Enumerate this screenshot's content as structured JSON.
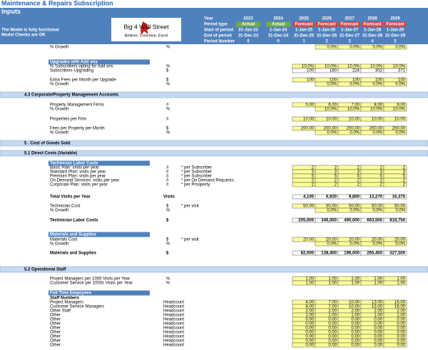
{
  "header": {
    "title": "Maintenance & Repairs Subscription",
    "subtitle": "Inputs",
    "notes": [
      "The Model is fully functional",
      "Model Checks are OK"
    ],
    "logo": {
      "name": "Big 4 Wall Street",
      "tagline": "Believe, Conceive, Excel"
    },
    "timeline": {
      "labels": [
        "Year",
        "Period type",
        "Start of period",
        "End of period",
        "Period Number"
      ],
      "years": [
        "2023",
        "2024",
        "2025",
        "2026",
        "2027",
        "2028",
        "2029"
      ],
      "period_types": [
        "Actual",
        "Actual",
        "Forecast",
        "Forecast",
        "Forecast",
        "Forecast",
        "Forecast"
      ],
      "starts": [
        "31-Jan-23",
        "1-Jan-24",
        "1-Jan-25",
        "1-Jan-26",
        "1-Jan-27",
        "1-Jan-28",
        "1-Jan-29"
      ],
      "ends": [
        "31-Dec-23",
        "31-Dec-24",
        "31-Dec-25",
        "31-Dec-26",
        "31-Dec-27",
        "31-Dec-28",
        "31-Dec-29"
      ],
      "period_numbers": [
        "0",
        "0",
        "1",
        "2",
        "3",
        "4",
        "5"
      ]
    }
  },
  "rows": [
    {
      "label": "% Growth",
      "unit": "%",
      "kind": "input",
      "values": [
        null,
        null,
        null,
        "0.0%",
        "0.0%",
        "0.0%",
        "0.0%"
      ]
    },
    {
      "label": "Upgrades with Add ons",
      "kind": "group"
    },
    {
      "label": "% Subscribers opting for Add ons",
      "unit": "%",
      "kind": "input",
      "values": [
        null,
        null,
        "10.0%",
        "10.0%",
        "10.0%",
        "10.0%",
        "10.0%"
      ]
    },
    {
      "label": "Subscribers Upgrading",
      "unit": "$",
      "kind": "calc",
      "values": [
        null,
        null,
        "100",
        "160",
        "224",
        "302",
        "371"
      ]
    },
    {
      "label": "Extra Fees per Month per Upgrade",
      "unit": "$",
      "kind": "input",
      "values": [
        null,
        null,
        "100",
        "100",
        "100",
        "100",
        "100"
      ]
    },
    {
      "label": "% Growth",
      "unit": "%",
      "kind": "input",
      "values": [
        null,
        null,
        null,
        "0.0%",
        "0.0%",
        "0.0%",
        "0.0%"
      ]
    },
    {
      "label": "4.3  Corporate/Property Management Accounts",
      "kind": "section"
    },
    {
      "label": "Property Management Firms",
      "unit": "#",
      "kind": "input",
      "values": [
        null,
        null,
        "5.00",
        "6.00",
        "7.00",
        "8.00",
        "9.00"
      ]
    },
    {
      "label": "% Growth",
      "unit": "%",
      "kind": "input",
      "values": [
        null,
        null,
        null,
        "10.0%",
        "10.0%",
        "10.0%",
        "10.0%"
      ]
    },
    {
      "label": "Properties per Firm",
      "unit": "#",
      "kind": "input",
      "values": [
        null,
        null,
        "10.00",
        "10.00",
        "10.00",
        "10.00",
        "10.00"
      ]
    },
    {
      "label": "Fees per Property per Month",
      "unit": "$",
      "kind": "input",
      "values": [
        null,
        null,
        "200.00",
        "200.00",
        "200.00",
        "200.00",
        "200.00"
      ]
    },
    {
      "label": "% Growth",
      "unit": "%",
      "kind": "input",
      "values": [
        null,
        null,
        null,
        "0.0%",
        "0.0%",
        "0.0%",
        "0.0%"
      ]
    },
    {
      "label": "5 .  Cost of Goods Sold",
      "kind": "section"
    },
    {
      "label": "5.1  Direct Costs (Variable)",
      "kind": "section"
    },
    {
      "label": "Technician Labor Costs",
      "kind": "group"
    },
    {
      "label": "Basic Plan: visits per year",
      "unit": "#",
      "note": "* per Subscriber",
      "kind": "input",
      "values": [
        null,
        null,
        "2",
        "2",
        "2",
        "2",
        "2"
      ]
    },
    {
      "label": "Standard Plan: visits per year",
      "unit": "#",
      "note": "* per Subscriber",
      "kind": "input",
      "values": [
        null,
        null,
        "3",
        "3",
        "3",
        "3",
        "3"
      ]
    },
    {
      "label": "Premium Plan: visits per year",
      "unit": "#",
      "note": "* per Subscriber",
      "kind": "input",
      "values": [
        null,
        null,
        "5",
        "5",
        "5",
        "5",
        "5"
      ]
    },
    {
      "label": "On Demand Services: visits per year",
      "unit": "#",
      "note": "* per On Demand Requests",
      "kind": "input",
      "values": [
        null,
        null,
        "2",
        "2",
        "2",
        "2",
        "2"
      ]
    },
    {
      "label": "Corporate Plan: visits per year",
      "unit": "#",
      "note": "* per Prooperty",
      "kind": "input",
      "values": [
        null,
        null,
        "2",
        "2",
        "2",
        "2",
        "2"
      ]
    },
    {
      "label": "Total Visits per Year",
      "unit": "Visits",
      "kind": "total",
      "values": [
        null,
        null,
        "4,100",
        "6,920",
        "9,800",
        "13,270",
        "16,375"
      ]
    },
    {
      "label": "Technician Cost",
      "unit": "$",
      "note": "* per visit",
      "kind": "input",
      "values": [
        null,
        null,
        "50.00",
        "50.00",
        "50.00",
        "50.00",
        "50.00"
      ]
    },
    {
      "label": "% Growth",
      "unit": "%",
      "kind": "input",
      "values": [
        null,
        null,
        null,
        "0.0%",
        "0.0%",
        "0.0%",
        "0.0%"
      ]
    },
    {
      "label": "Technician Labor Costs",
      "unit": "$",
      "kind": "total",
      "values": [
        null,
        null,
        "205,000",
        "346,000",
        "490,000",
        "663,500",
        "818,750"
      ]
    },
    {
      "label": "Materials and Supplies",
      "kind": "group"
    },
    {
      "label": "Materials Cost",
      "unit": "$",
      "note": "* per visit",
      "kind": "input",
      "values": [
        null,
        null,
        "20.00",
        "20.00",
        "20.00",
        "20.00",
        "20.00"
      ]
    },
    {
      "label": "% Growth",
      "unit": "%",
      "kind": "input",
      "values": [
        null,
        null,
        null,
        "0.0%",
        "0.0%",
        "0.0%",
        "0.0%"
      ]
    },
    {
      "label": "Materials and Supplies",
      "unit": "$",
      "kind": "total",
      "values": [
        null,
        null,
        "82,000",
        "138,400",
        "196,000",
        "265,400",
        "327,500"
      ]
    },
    {
      "label": "5.2  Operational Staff",
      "kind": "section"
    },
    {
      "label": "Project Managers per 1000 Visits per Year",
      "unit": "%",
      "kind": "input",
      "values": [
        null,
        null,
        "1.00",
        "1.00",
        "1.00",
        "1.00",
        "1.00"
      ]
    },
    {
      "label": "Customer Service per 1000s Visits per Year",
      "unit": "%",
      "kind": "input",
      "values": [
        null,
        null,
        "1.00",
        "1.00",
        "1.00",
        "1.00",
        "1.00"
      ]
    },
    {
      "label": "Full Time Empoyees",
      "kind": "group"
    },
    {
      "label": "Staff Numbers",
      "kind": "heading"
    },
    {
      "label": "Project Managers",
      "unit": "Headcount",
      "kind": "input",
      "values": [
        null,
        null,
        "4.00",
        "7.00",
        "10.00",
        "13.00",
        "16.00"
      ]
    },
    {
      "label": "Customer Service Managers",
      "unit": "Headcount",
      "kind": "input",
      "values": [
        null,
        null,
        "4.00",
        "7.00",
        "10.00",
        "13.00",
        "16.00"
      ]
    },
    {
      "label": "Other Staff",
      "unit": "Headcount",
      "kind": "input",
      "values": [
        null,
        null,
        "2.00",
        "2.00",
        "2.00",
        "2.00",
        "2.00"
      ]
    },
    {
      "label": "Other",
      "unit": "Headcount",
      "kind": "input",
      "values": [
        null,
        null,
        "1.00",
        "1.00",
        "1.00",
        "1.00",
        "1.00"
      ]
    },
    {
      "label": "Other",
      "unit": "Headcount",
      "kind": "input",
      "values": [
        null,
        null,
        "0.00",
        "0.00",
        "0.00",
        "0.00",
        "0.00"
      ]
    },
    {
      "label": "Other",
      "unit": "Headcount",
      "kind": "input",
      "values": [
        null,
        null,
        "0.00",
        "0.00",
        "0.00",
        "0.00",
        "0.00"
      ]
    },
    {
      "label": "Other",
      "unit": "Headcount",
      "kind": "input",
      "values": [
        null,
        null,
        "0.00",
        "0.00",
        "0.00",
        "0.00",
        "0.00"
      ]
    },
    {
      "label": "Other",
      "unit": "Headcount",
      "kind": "input",
      "values": [
        null,
        null,
        "0.00",
        "0.00",
        "0.00",
        "0.00",
        "0.00"
      ]
    },
    {
      "label": "Other",
      "unit": "Headcount",
      "kind": "input",
      "values": [
        null,
        null,
        "0.00",
        "0.00",
        "0.00",
        "0.00",
        "0.00"
      ]
    },
    {
      "label": "Other",
      "unit": "Headcount",
      "kind": "input",
      "values": [
        null,
        null,
        "0.00",
        "0.00",
        "0.00",
        "0.00",
        "0.00"
      ]
    },
    {
      "label": "Other",
      "unit": "Headcount",
      "kind": "input",
      "values": [
        null,
        null,
        "0.00",
        "0.00",
        "0.00",
        "0.00",
        "0.00"
      ]
    }
  ]
}
